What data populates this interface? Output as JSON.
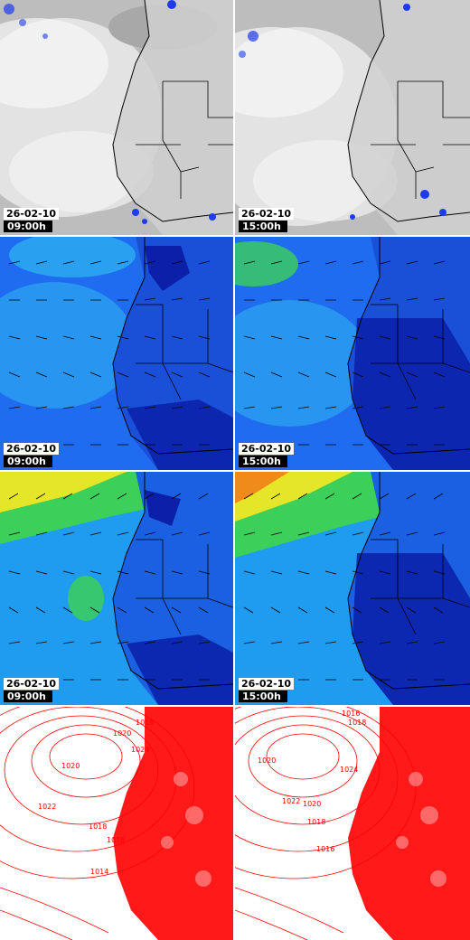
{
  "panels": [
    {
      "type": "satellite-ir",
      "date": "26-02-10",
      "time": "09:00h"
    },
    {
      "type": "satellite-ir",
      "date": "26-02-10",
      "time": "15:00h"
    },
    {
      "type": "wind-field-low",
      "date": "26-02-10",
      "time": "09:00h"
    },
    {
      "type": "wind-field-low",
      "date": "26-02-10",
      "time": "15:00h"
    },
    {
      "type": "wind-field-high",
      "date": "26-02-10",
      "time": "09:00h"
    },
    {
      "type": "wind-field-high",
      "date": "26-02-10",
      "time": "15:00h"
    },
    {
      "type": "pressure-isobars",
      "labels": [
        "1018",
        "1020",
        "1024",
        "1020",
        "1022",
        "1018",
        "1016",
        "1014"
      ]
    },
    {
      "type": "pressure-isobars",
      "labels": [
        "1016",
        "1018",
        "1020",
        "1024",
        "1022",
        "1020",
        "1018",
        "1016"
      ]
    }
  ],
  "colors": {
    "ocean_ir": "#c8c8c8",
    "land_ir": "#d2d2d2",
    "wind_dark": "#0b1fa8",
    "wind_mid": "#1f6cf0",
    "wind_light": "#2fb8f0",
    "wind_green": "#3ccf5a",
    "wind_yellow": "#e6e628",
    "wind_orange": "#f08a1a",
    "isobar": "#ff0000"
  }
}
